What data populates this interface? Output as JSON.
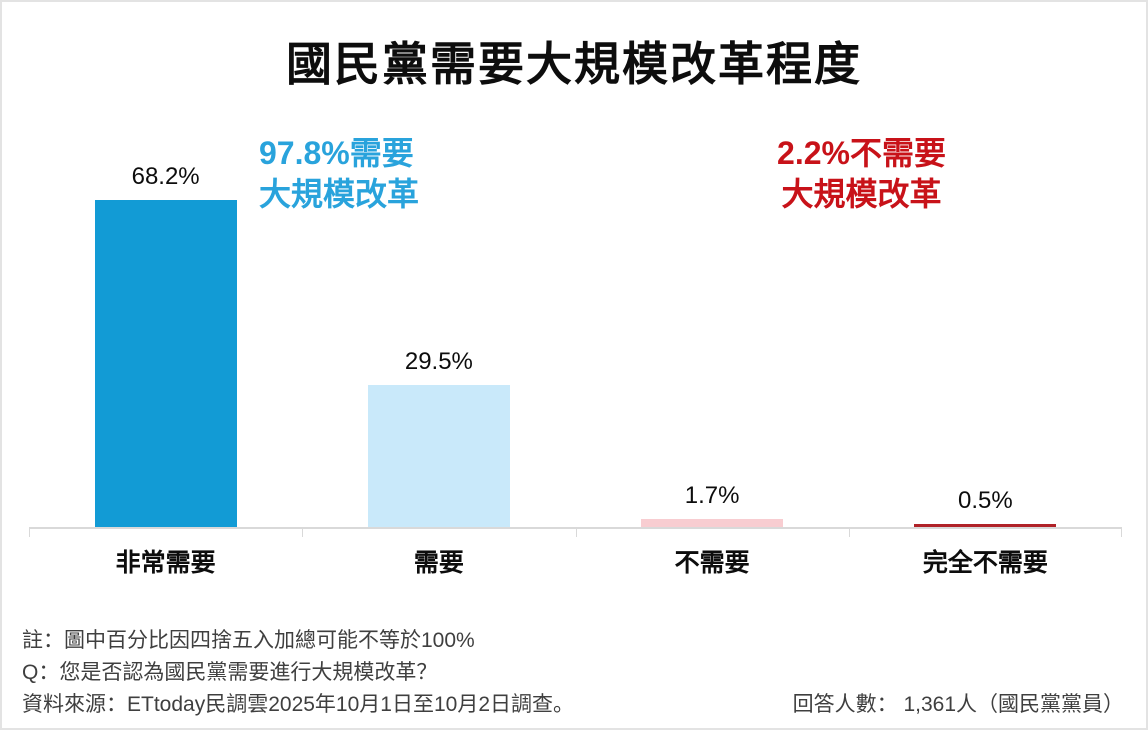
{
  "page": {
    "title": "國民黨需要大規模改革程度"
  },
  "annotations": {
    "need": {
      "line1": "97.8%需要",
      "line2": "大規模改革",
      "color": "#29A3DC"
    },
    "no_need": {
      "line1": "2.2%不需要",
      "line2": "大規模改革",
      "color": "#C81219"
    }
  },
  "chart_data": {
    "type": "bar",
    "title": "國民黨需要大規模改革程度",
    "categories": [
      "非常需要",
      "需要",
      "不需要",
      "完全不需要"
    ],
    "values": [
      68.2,
      29.5,
      1.7,
      0.5
    ],
    "value_labels": [
      "68.2%",
      "29.5%",
      "1.7%",
      "0.5%"
    ],
    "bar_colors": [
      "#129BD5",
      "#C9E9FA",
      "#F8CDD1",
      "#B02228"
    ],
    "ylabel": "",
    "xlabel": "",
    "ylim": [
      0,
      85
    ],
    "grid": false,
    "legend": "none",
    "axis_color": "#D9D9D9"
  },
  "footer": {
    "note": "註：圖中百分比因四捨五入加總可能不等於100%",
    "question": "Q：您是否認為國民黨需要進行大規模改革？",
    "source": "資料來源：ETtoday民調雲2025年10月1日至10月2日調查。",
    "respondents": "回答人數： 1,361人（國民黨黨員）"
  }
}
